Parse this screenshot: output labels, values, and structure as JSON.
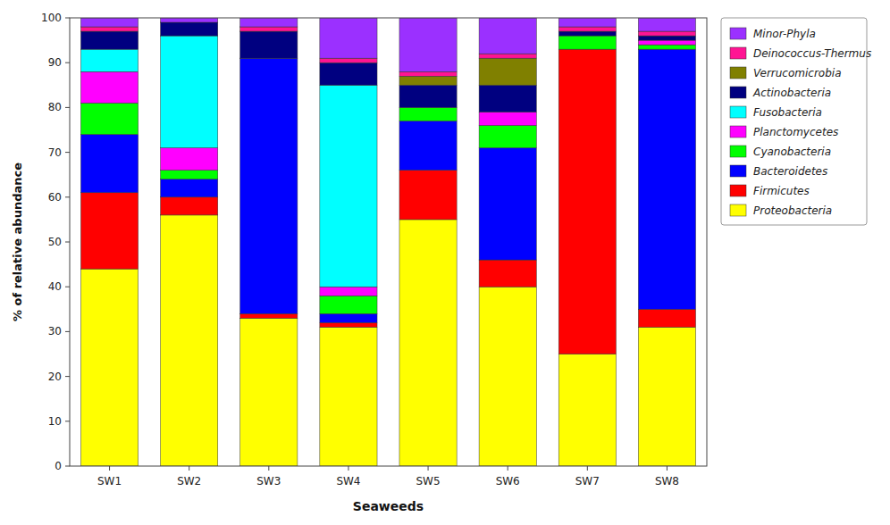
{
  "chart_data": {
    "type": "bar",
    "stacked": true,
    "xlabel": "Seaweeds",
    "ylabel": "% of relative abundance",
    "categories": [
      "SW1",
      "SW2",
      "SW3",
      "SW4",
      "SW5",
      "SW6",
      "SW7",
      "SW8"
    ],
    "series": [
      {
        "name": "Proteobacteria",
        "color": "#FFFF00",
        "values": [
          44,
          56,
          33,
          31,
          55,
          40,
          25,
          31
        ]
      },
      {
        "name": "Firmicutes",
        "color": "#FF0000",
        "values": [
          17,
          4,
          1,
          1,
          11,
          6,
          68,
          4
        ]
      },
      {
        "name": "Bacteroidetes",
        "color": "#0000FF",
        "values": [
          13,
          4,
          57,
          2,
          11,
          25,
          0,
          58
        ]
      },
      {
        "name": "Cyanobacteria",
        "color": "#00FF00",
        "values": [
          7,
          2,
          0,
          4,
          3,
          5,
          3,
          1
        ]
      },
      {
        "name": "Planctomycetes",
        "color": "#FF00FF",
        "values": [
          7,
          5,
          0,
          2,
          0,
          3,
          0,
          1
        ]
      },
      {
        "name": "Fusobacteria",
        "color": "#00FFFF",
        "values": [
          5,
          25,
          0,
          45,
          0,
          0,
          0,
          0
        ]
      },
      {
        "name": "Actinobacteria",
        "color": "#000080",
        "values": [
          4,
          3,
          6,
          5,
          5,
          6,
          1,
          1
        ]
      },
      {
        "name": "Verrucomicrobia",
        "color": "#808000",
        "values": [
          0,
          0,
          0,
          0,
          2,
          6,
          0,
          0
        ]
      },
      {
        "name": "Deinococcus-Thermus",
        "color": "#FF1493",
        "values": [
          1,
          0,
          1,
          1,
          1,
          1,
          1,
          1
        ]
      },
      {
        "name": "Minor-Phyla",
        "color": "#9B30FF",
        "values": [
          2,
          1,
          2,
          9,
          12,
          8,
          2,
          3
        ]
      }
    ],
    "ylim": [
      0,
      100
    ],
    "yticks": [
      0,
      10,
      20,
      30,
      40,
      50,
      60,
      70,
      80,
      90,
      100
    ],
    "grid": false,
    "legend": "right"
  }
}
